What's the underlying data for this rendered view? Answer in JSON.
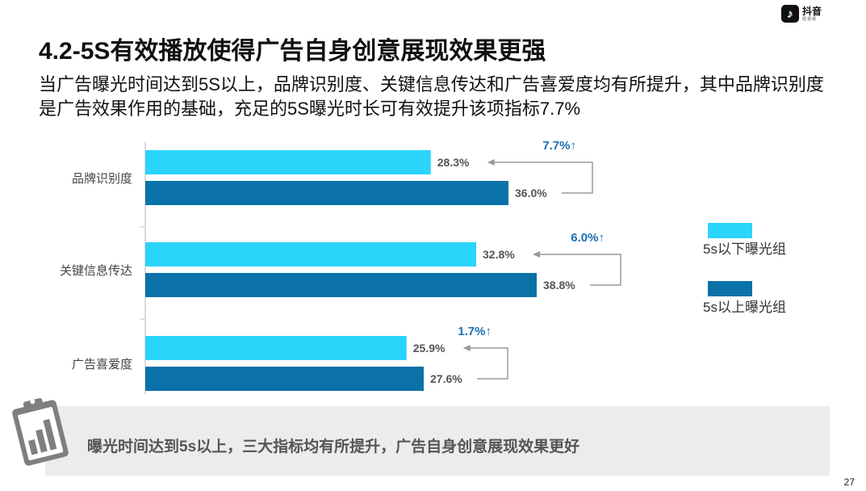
{
  "brand": {
    "logo_glyph": "♪",
    "name": "抖音",
    "sub": "短视频"
  },
  "title": "4.2-5S有效播放使得广告自身创意展现效果更强",
  "subtitle": "当广告曝光时间达到5S以上，品牌识别度、关键信息传达和广告喜爱度均有所提升，其中品牌识别度是广告效果作用的基础，充足的5S曝光时长可有效提升该项指标7.7%",
  "summary": "曝光时间达到5s以上，三大指标均有所提升，广告自身创意展现效果更好",
  "page_number": "27",
  "icons": {
    "summary": "clipboard-chart-icon"
  },
  "colors": {
    "below_5s": "#2ad4fa",
    "above_5s": "#0a72a8",
    "diff_label": "#1b6fb3",
    "arrow": "#9a9a9a",
    "axis": "#cfcfcf"
  },
  "chart_data": {
    "type": "bar",
    "orientation": "horizontal",
    "categories": [
      "品牌识别度",
      "关键信息传达",
      "广告喜爱度"
    ],
    "series": [
      {
        "name": "5s以下曝光组",
        "values": [
          28.3,
          32.8,
          25.9
        ]
      },
      {
        "name": "5s以上曝光组",
        "values": [
          36.0,
          38.8,
          27.6
        ]
      }
    ],
    "value_labels": [
      [
        "28.3%",
        "36.0%"
      ],
      [
        "32.8%",
        "38.8%"
      ],
      [
        "25.9%",
        "27.6%"
      ]
    ],
    "differences": [
      "7.7%↑",
      "6.0%↑",
      "1.7%↑"
    ],
    "xlim": [
      0,
      40
    ],
    "grid": false,
    "legend_position": "right"
  }
}
